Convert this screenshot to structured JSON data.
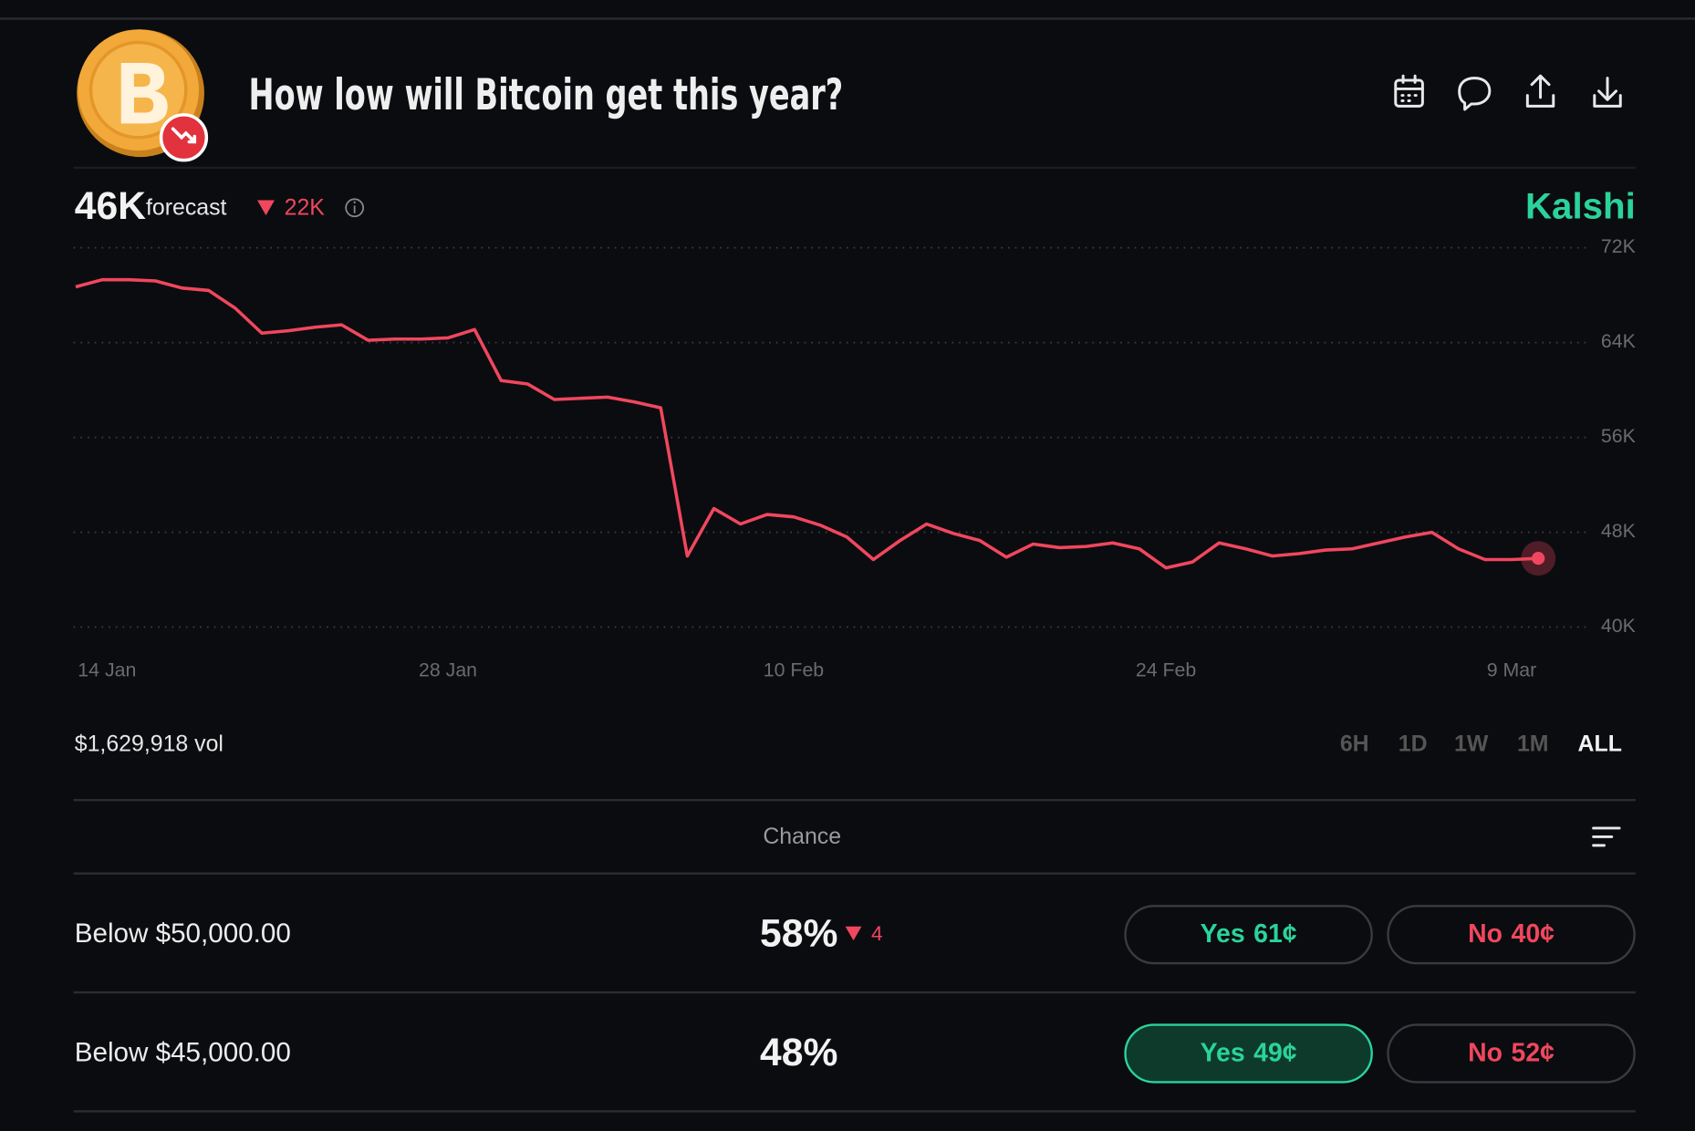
{
  "header": {
    "title": "How low will Bitcoin get this year?",
    "forecast_value": "46K",
    "forecast_label": "forecast",
    "forecast_change": "22K",
    "brand": "Kalshi"
  },
  "chart_data": {
    "type": "line",
    "color": "#f0475e",
    "categories": [
      "14 Jan",
      null,
      null,
      null,
      null,
      null,
      null,
      null,
      null,
      null,
      null,
      null,
      null,
      null,
      "28 Jan",
      null,
      null,
      null,
      null,
      null,
      null,
      null,
      null,
      null,
      null,
      null,
      null,
      "10 Feb",
      null,
      null,
      null,
      null,
      null,
      null,
      null,
      null,
      null,
      null,
      null,
      null,
      null,
      "24 Feb",
      null,
      null,
      null,
      null,
      null,
      null,
      null,
      null,
      null,
      null,
      null,
      null,
      "9 Mar",
      null
    ],
    "values": [
      68.7,
      69.3,
      69.3,
      69.2,
      68.6,
      68.4,
      66.9,
      64.8,
      65.0,
      65.3,
      65.5,
      64.2,
      64.3,
      64.3,
      64.4,
      65.1,
      60.8,
      60.5,
      59.2,
      59.3,
      59.4,
      59.0,
      58.5,
      46.0,
      50.0,
      48.7,
      49.5,
      49.3,
      48.6,
      47.6,
      45.7,
      47.3,
      48.7,
      47.9,
      47.3,
      45.9,
      47.0,
      46.7,
      46.8,
      47.1,
      46.6,
      45.0,
      45.5,
      47.1,
      46.6,
      46.0,
      46.2,
      46.5,
      46.6,
      47.1,
      47.6,
      48.0,
      46.6,
      45.7,
      45.7,
      45.8
    ],
    "ylim": [
      40,
      72
    ],
    "yticks": [
      {
        "value": 40,
        "label": "40K"
      },
      {
        "value": 48,
        "label": "48K"
      },
      {
        "value": 56,
        "label": "56K"
      },
      {
        "value": 64,
        "label": "64K"
      },
      {
        "value": 72,
        "label": "72K"
      }
    ],
    "grid": true
  },
  "volume": "$1,629,918 vol",
  "ranges": [
    "6H",
    "1D",
    "1W",
    "1M",
    "ALL"
  ],
  "active_range": 4,
  "table": {
    "header": "Chance",
    "rows": [
      {
        "label": "Below $50,000.00",
        "chance": "58%",
        "change": "4",
        "yes": "Yes",
        "yes_price": "61¢",
        "no": "No",
        "no_price": "40¢",
        "yes_selected": false
      },
      {
        "label": "Below $45,000.00",
        "chance": "48%",
        "yes": "Yes",
        "yes_price": "49¢",
        "no": "No",
        "no_price": "52¢",
        "yes_selected": true
      }
    ]
  }
}
